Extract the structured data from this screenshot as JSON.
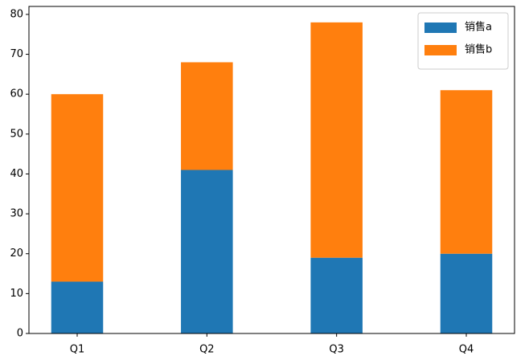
{
  "chart_data": {
    "type": "stacked_bar",
    "categories": [
      "Q1",
      "Q2",
      "Q3",
      "Q4"
    ],
    "series": [
      {
        "name": "销售a",
        "color": "#1f77b4",
        "values": [
          13,
          41,
          19,
          20
        ]
      },
      {
        "name": "销售b",
        "color": "#ff7f0e",
        "values": [
          47,
          27,
          59,
          41
        ]
      }
    ],
    "ylim": [
      0,
      82
    ],
    "yticks": [
      0,
      10,
      20,
      30,
      40,
      50,
      60,
      70,
      80
    ],
    "legend": "upper right"
  }
}
